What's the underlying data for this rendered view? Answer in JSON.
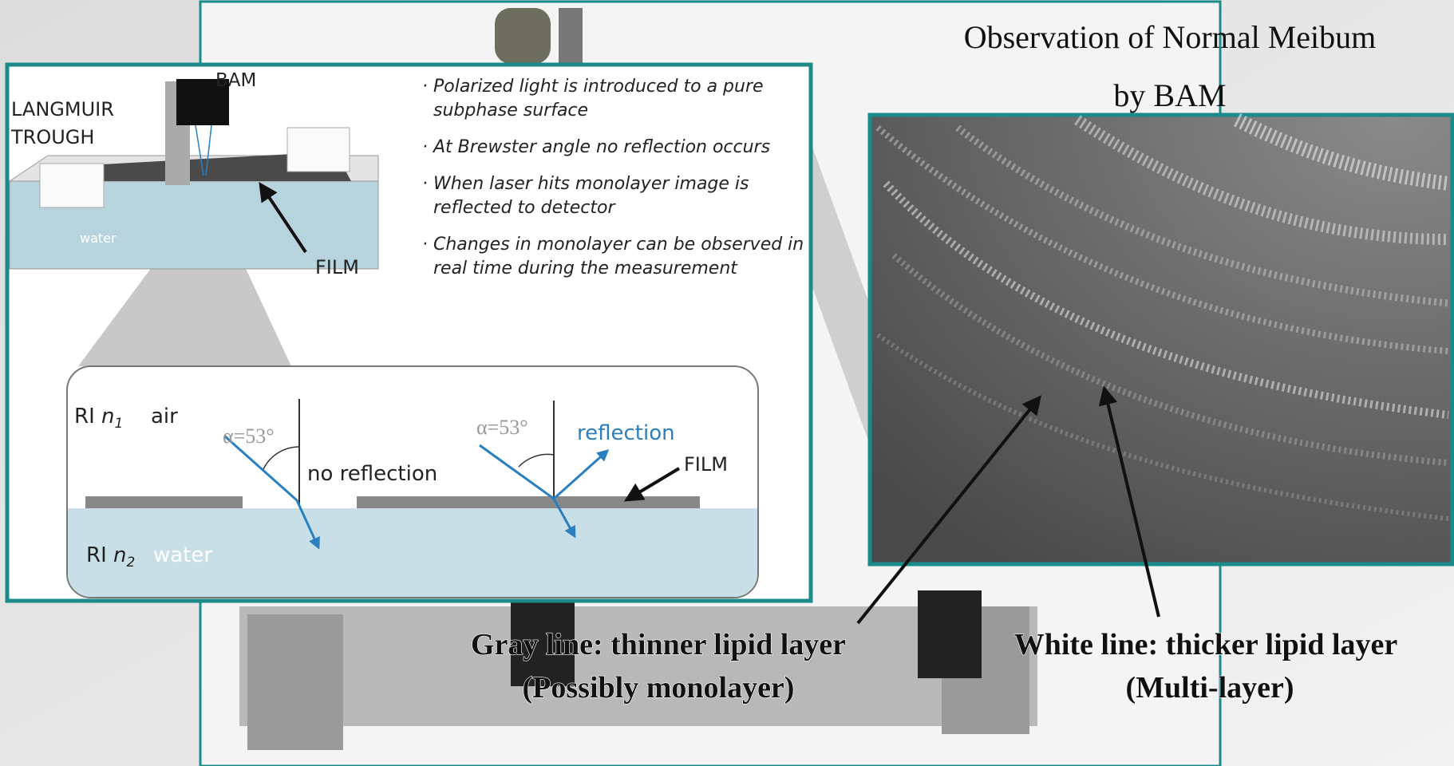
{
  "title": {
    "line1": "Observation of Normal Meibum",
    "line2": "by BAM"
  },
  "diagram": {
    "bam": "BAM",
    "trough": [
      "LANGMUIR",
      "TROUGH"
    ],
    "water": "water",
    "film": "FILM",
    "bullets": [
      [
        "· Polarized light is introduced to a pure",
        "subphase surface"
      ],
      [
        "· At Brewster angle no reflection occurs"
      ],
      [
        "· When laser hits monolayer image is",
        "reflected to detector"
      ],
      [
        "· Changes in monolayer can be observed in",
        "real time during the measurement"
      ]
    ]
  },
  "inset": {
    "ri1": "RI",
    "n1": "n",
    "sub1": "1",
    "air": "air",
    "ri2": "RI",
    "n2": "n",
    "sub2": "2",
    "water": "water",
    "angle_left": "α=53°",
    "angle_right": "α=53°",
    "no_reflection": "no reflection",
    "reflection": "reflection",
    "film": "FILM"
  },
  "annotations": {
    "gray": [
      "Gray line: thinner lipid layer",
      "(Possibly monolayer)"
    ],
    "white": [
      "White line: thicker lipid layer",
      "(Multi-layer)"
    ]
  }
}
